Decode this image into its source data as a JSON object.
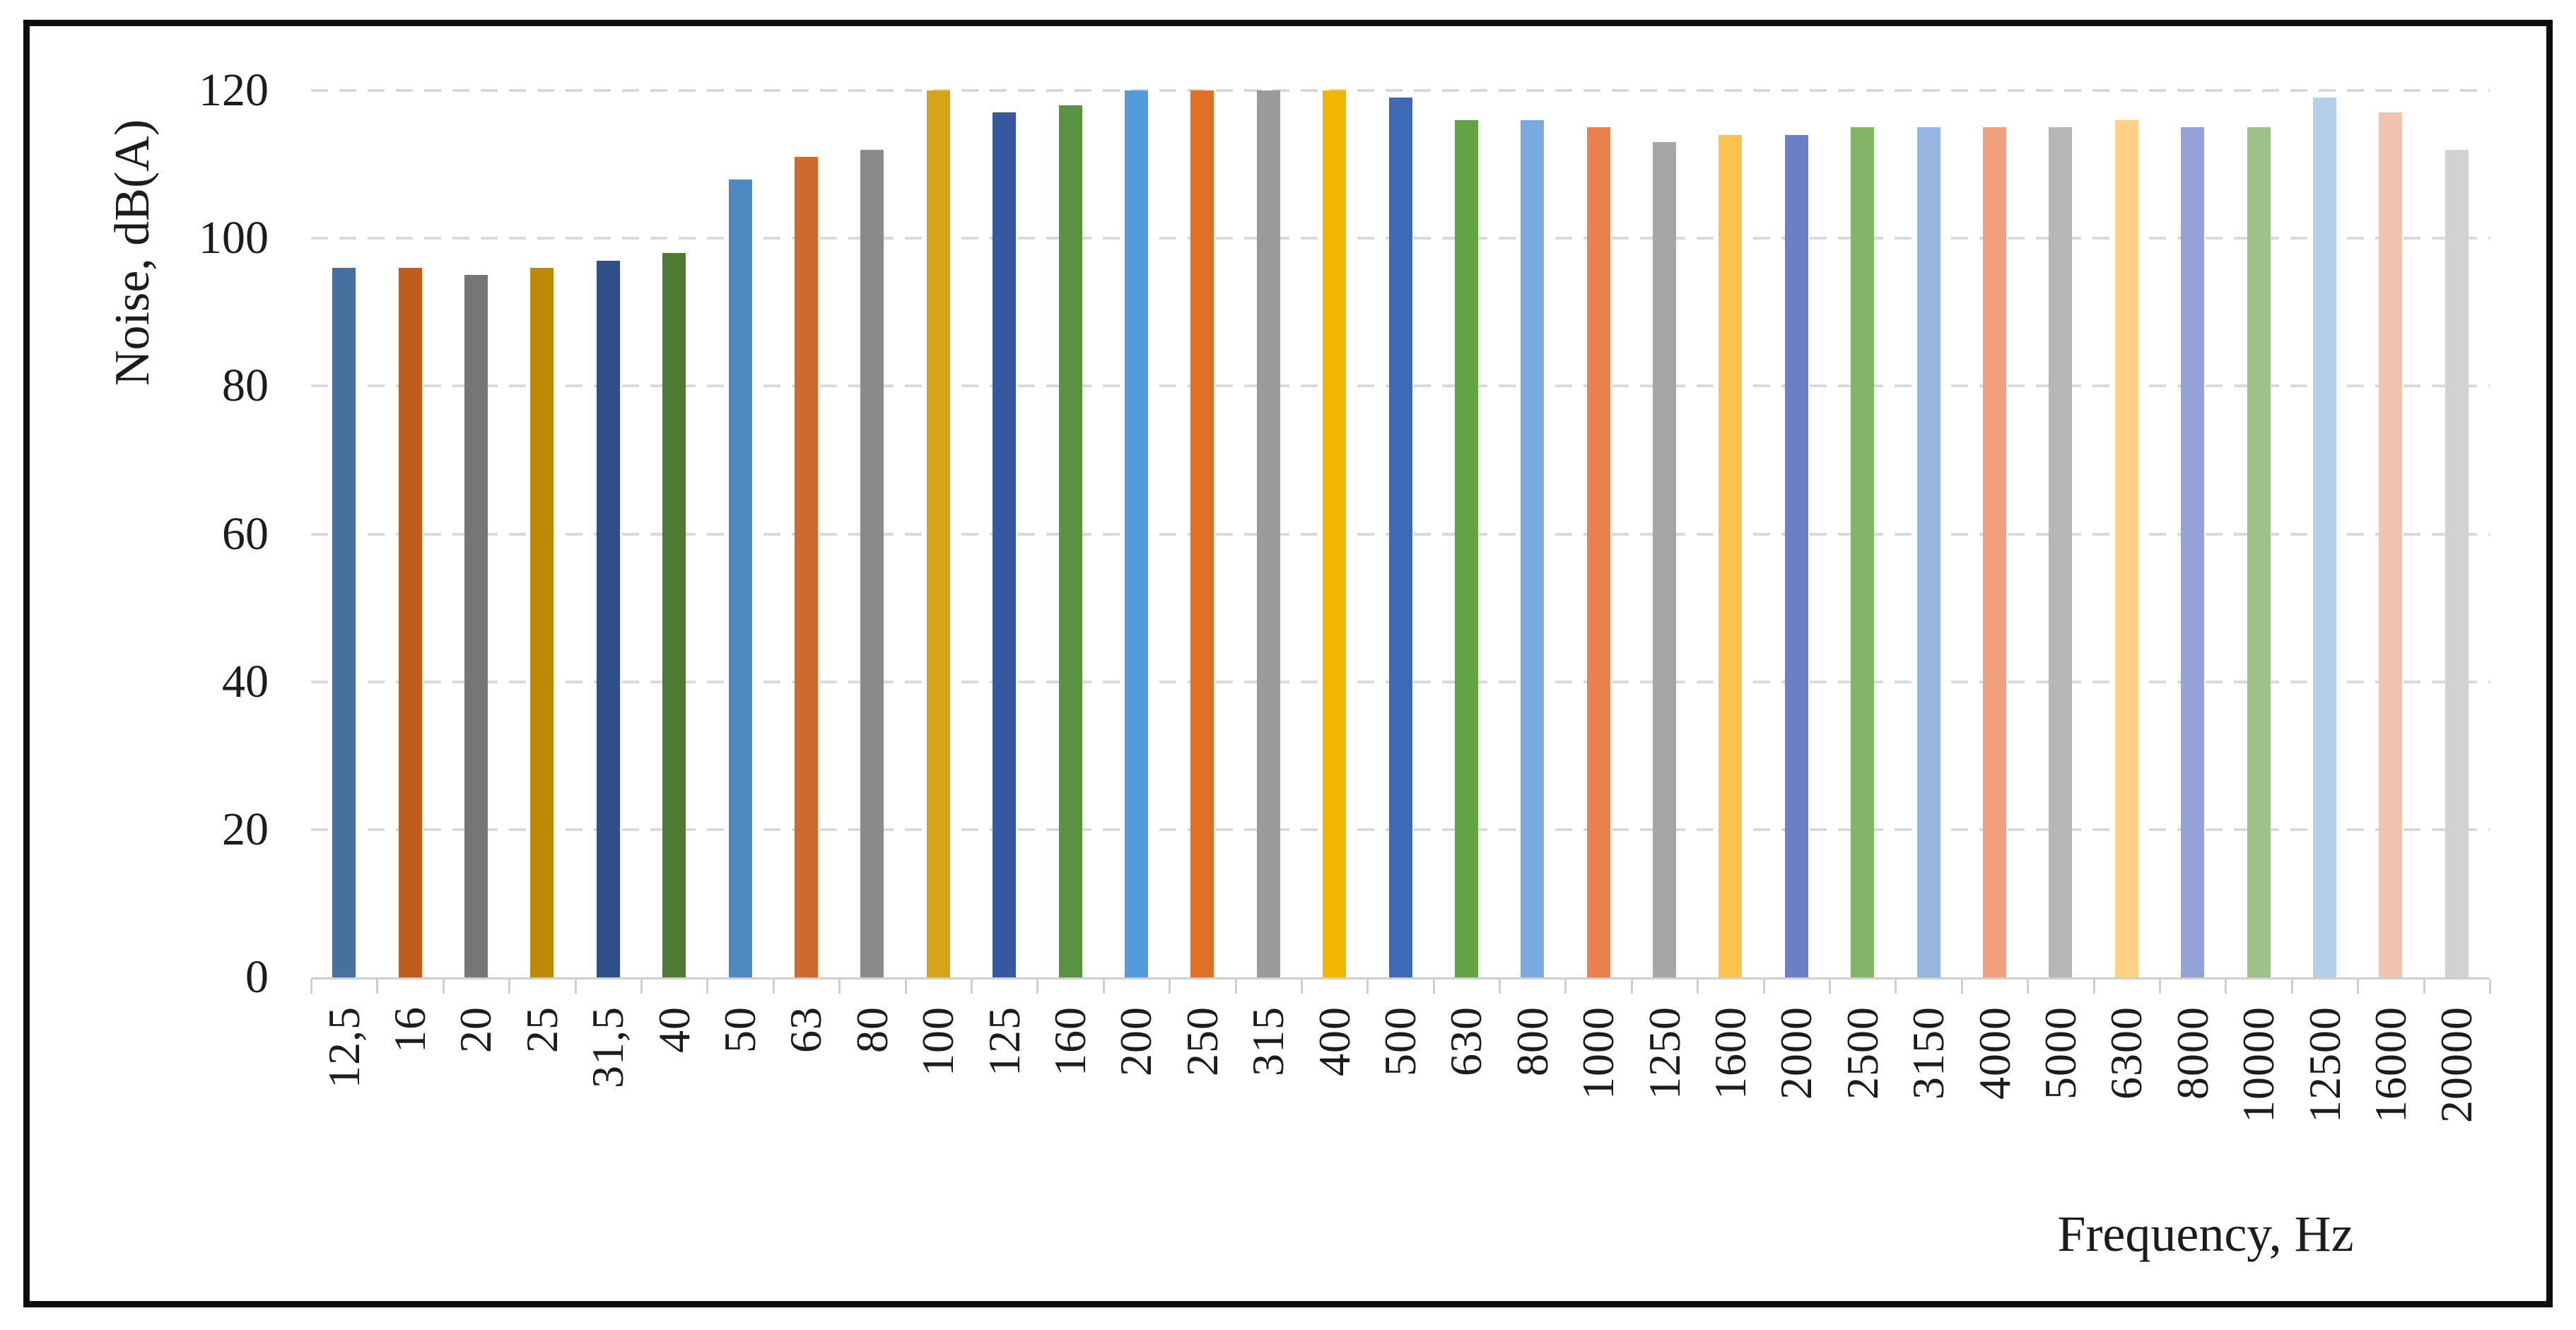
{
  "chart_data": {
    "type": "bar",
    "title": "",
    "ylabel": "Noise, dB(A)",
    "xlabel": "Frequency, Hz",
    "ylim": [
      0,
      120
    ],
    "yticks": [
      0,
      20,
      40,
      60,
      80,
      100,
      120
    ],
    "grid": "horizontal-dashed",
    "legend": "none",
    "gridline_color": "#d9d9d9",
    "axis_color": "#cfcfcf",
    "categories": [
      "12,5",
      "16",
      "20",
      "25",
      "31,5",
      "40",
      "50",
      "63",
      "80",
      "100",
      "125",
      "160",
      "200",
      "250",
      "315",
      "400",
      "500",
      "630",
      "800",
      "1000",
      "1250",
      "1600",
      "2000",
      "2500",
      "3150",
      "4000",
      "5000",
      "6300",
      "8000",
      "10000",
      "12500",
      "16000",
      "20000"
    ],
    "values": [
      96,
      96,
      95,
      96,
      97,
      98,
      108,
      111,
      112,
      120,
      117,
      118,
      120,
      120,
      120,
      120,
      119,
      116,
      116,
      115,
      113,
      114,
      114,
      115,
      115,
      115,
      115,
      116,
      115,
      115,
      119,
      117,
      112
    ],
    "bar_colors": [
      "#44719E",
      "#BE5B1D",
      "#767676",
      "#BC8A06",
      "#2E4F87",
      "#4E7B31",
      "#4E88C0",
      "#CC6A2F",
      "#8A8A8A",
      "#D6A41B",
      "#35589E",
      "#5A9142",
      "#549BD9",
      "#DE7028",
      "#9A9A9A",
      "#F2B600",
      "#3E68B8",
      "#63A346",
      "#79ABDE",
      "#E8814F",
      "#A6A6A6",
      "#FBC34C",
      "#6A7FC8",
      "#82B468",
      "#96B6E2",
      "#F0A07E",
      "#B7B7B7",
      "#FCD185",
      "#93A3D7",
      "#9CC287",
      "#B5CFEA",
      "#F5C2AD",
      "#D2D2D2"
    ]
  }
}
